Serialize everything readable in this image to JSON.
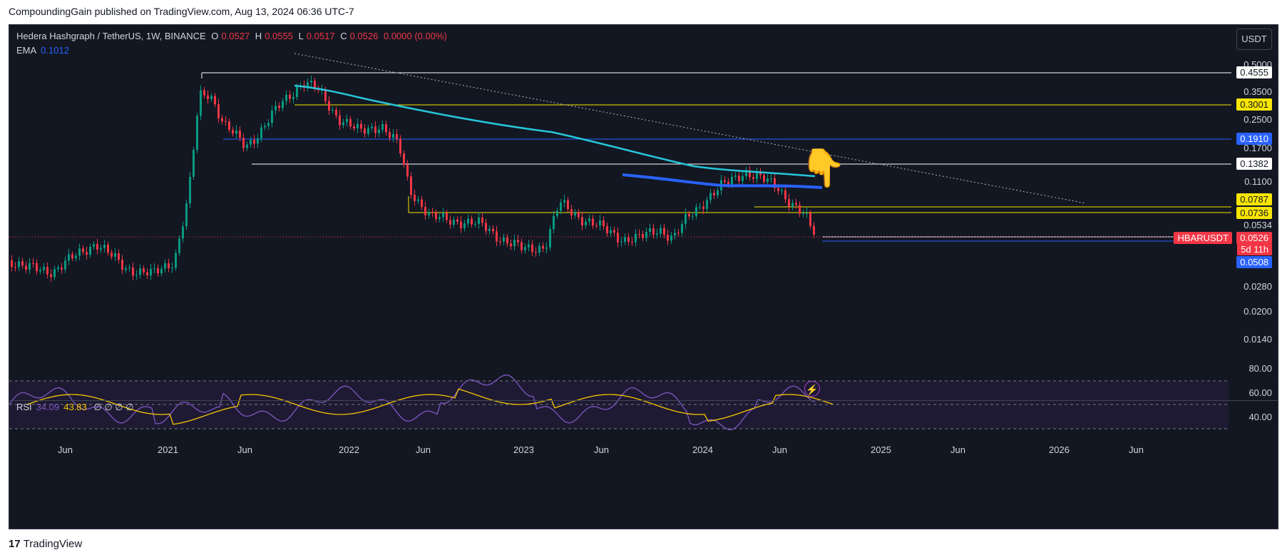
{
  "header": {
    "published": "CompoundingGain published on TradingView.com, Aug 13, 2024 06:36 UTC-7"
  },
  "legend": {
    "symbol": "Hedera Hashgraph / TetherUS, 1W, BINANCE",
    "o_label": "O",
    "o": "0.0527",
    "h_label": "H",
    "h": "0.0555",
    "l_label": "L",
    "l": "0.0517",
    "c_label": "C",
    "c": "0.0526",
    "change": "0.0000 (0.00%)"
  },
  "ema": {
    "label": "EMA",
    "value": "0.1012"
  },
  "rsi_legend": {
    "label": "RSI",
    "v1": "34.09",
    "v2": "43.83",
    "extra": "∅ ∅ ∅ ∅"
  },
  "currency_button": "USDT",
  "price_axis": [
    "0.5000",
    "0.3500",
    "0.2500",
    "0.1700",
    "0.1100",
    "0.0280",
    "0.0200",
    "0.0140"
  ],
  "price_tags": {
    "t4555": "0.4555",
    "t3001": "0.3001",
    "t1910": "0.1910",
    "t1382": "0.1382",
    "t0787": "0.0787",
    "t0736": "0.0736",
    "t0534": "0.0534",
    "symbol": "HBARUSDT",
    "last": "0.0526",
    "countdown": "5d 11h",
    "t0508": "0.0508"
  },
  "rsi_axis": [
    "80.00",
    "60.00",
    "40.00"
  ],
  "time_axis": [
    "Jun",
    "2021",
    "Jun",
    "2022",
    "Jun",
    "2023",
    "Jun",
    "2024",
    "Jun",
    "2025",
    "Jun",
    "2026",
    "Jun"
  ],
  "footer": {
    "brand": "TradingView"
  },
  "icons": {
    "bolt": "lightning-icon",
    "finger": "pointing-down-hand-icon"
  },
  "colors": {
    "bg": "#131722",
    "up": "#089981",
    "down": "#f23645",
    "ema_line": "#2962ff",
    "sma": "#26c6da",
    "rsi": "#7e57c2",
    "rsi_ma": "#f7c600"
  },
  "chart_data": {
    "type": "candlestick",
    "title": "Hedera Hashgraph / TetherUS, 1W, BINANCE",
    "y_scale": "log",
    "horizontal_levels": [
      0.4555,
      0.3001,
      0.191,
      0.1382,
      0.0787,
      0.0736,
      0.0534,
      0.0508
    ],
    "last_price": 0.0526,
    "ema": 0.1012,
    "rsi": [
      34.09,
      43.83
    ],
    "rsi_levels": [
      70,
      50,
      30
    ]
  }
}
